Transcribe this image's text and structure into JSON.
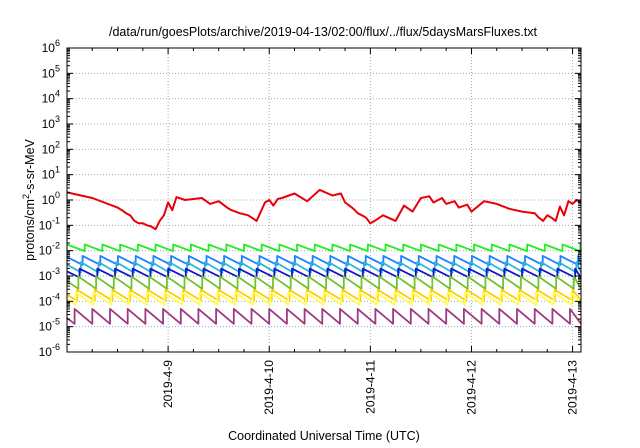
{
  "chart_data": {
    "type": "line",
    "title": "/data/run/goesPlots/archive/2019-04-13/02:00/flux/../flux/5daysMarsFluxes.txt",
    "xlabel": "Coordinated Universal Time (UTC)",
    "ylabel": {
      "pre": "protons/cm",
      "sup": "2",
      "post": "-s-sr-MeV"
    },
    "yscale": "log",
    "ylim": [
      1e-06,
      1000000.0
    ],
    "xlim": [
      "2019-04-08 00:00",
      "2019-04-13 02:00"
    ],
    "grid": true,
    "legend": "none",
    "x_ticks": [
      "2019-4-9",
      "2019-4-10",
      "2019-4-11",
      "2019-4-12",
      "2019-4-13"
    ],
    "y_ticks": [
      {
        "base": "10",
        "exp": "-6"
      },
      {
        "base": "10",
        "exp": "-5"
      },
      {
        "base": "10",
        "exp": "-4"
      },
      {
        "base": "10",
        "exp": "-3"
      },
      {
        "base": "10",
        "exp": "-2"
      },
      {
        "base": "10",
        "exp": "-1"
      },
      {
        "base": "10",
        "exp": "0"
      },
      {
        "base": "10",
        "exp": "1"
      },
      {
        "base": "10",
        "exp": "2"
      },
      {
        "base": "10",
        "exp": "3"
      },
      {
        "base": "10",
        "exp": "4"
      },
      {
        "base": "10",
        "exp": "5"
      },
      {
        "base": "10",
        "exp": "6"
      }
    ],
    "series": [
      {
        "color": "#e8000b",
        "x": [
          "2019-04-08 00:00",
          "2019-04-08 06:00",
          "2019-04-08 12:00",
          "2019-04-08 13:00",
          "2019-04-08 14:00",
          "2019-04-08 15:00",
          "2019-04-08 16:00",
          "2019-04-08 17:00",
          "2019-04-08 18:00",
          "2019-04-08 19:00",
          "2019-04-08 20:00",
          "2019-04-08 21:00",
          "2019-04-08 22:00",
          "2019-04-08 23:00",
          "2019-04-09 00:00",
          "2019-04-09 01:00",
          "2019-04-09 02:00",
          "2019-04-09 04:00",
          "2019-04-09 08:00",
          "2019-04-09 10:00",
          "2019-04-09 12:00",
          "2019-04-09 14:00",
          "2019-04-09 15:00",
          "2019-04-09 17:00",
          "2019-04-09 19:00",
          "2019-04-09 21:00",
          "2019-04-09 23:00",
          "2019-04-10 00:00",
          "2019-04-10 01:00",
          "2019-04-10 02:00",
          "2019-04-10 03:00",
          "2019-04-10 06:00",
          "2019-04-10 09:00",
          "2019-04-10 12:00",
          "2019-04-10 15:00",
          "2019-04-10 17:00",
          "2019-04-10 18:00",
          "2019-04-10 19:00",
          "2019-04-10 20:00",
          "2019-04-10 21:00",
          "2019-04-10 22:00",
          "2019-04-10 23:00",
          "2019-04-11 00:00",
          "2019-04-11 01:00",
          "2019-04-11 03:00",
          "2019-04-11 06:00",
          "2019-04-11 08:00",
          "2019-04-11 10:00",
          "2019-04-11 12:00",
          "2019-04-11 14:00",
          "2019-04-11 15:00",
          "2019-04-11 17:00",
          "2019-04-11 18:00",
          "2019-04-11 20:00",
          "2019-04-11 21:00",
          "2019-04-11 23:00",
          "2019-04-12 00:00",
          "2019-04-12 03:00",
          "2019-04-12 06:00",
          "2019-04-12 09:00",
          "2019-04-12 12:00",
          "2019-04-12 15:00",
          "2019-04-12 16:00",
          "2019-04-12 17:00",
          "2019-04-12 18:00",
          "2019-04-12 19:00",
          "2019-04-12 20:00",
          "2019-04-12 21:00",
          "2019-04-12 22:00",
          "2019-04-12 23:00",
          "2019-04-13 00:00",
          "2019-04-13 01:00",
          "2019-04-13 02:00"
        ],
        "values": [
          2.0,
          1.2,
          0.5,
          0.4,
          0.3,
          0.25,
          0.15,
          0.12,
          0.12,
          0.1,
          0.09,
          0.07,
          0.15,
          0.25,
          0.8,
          0.4,
          1.3,
          1.0,
          1.2,
          0.7,
          0.9,
          0.5,
          0.4,
          0.3,
          0.25,
          0.15,
          0.8,
          1.0,
          0.6,
          1.1,
          1.2,
          1.8,
          0.9,
          2.5,
          1.5,
          1.8,
          0.8,
          0.6,
          0.45,
          0.3,
          0.25,
          0.2,
          0.12,
          0.15,
          0.25,
          0.15,
          0.6,
          0.35,
          1.2,
          1.4,
          0.8,
          1.2,
          0.7,
          0.9,
          0.5,
          0.65,
          0.35,
          0.9,
          0.7,
          0.45,
          0.35,
          0.3,
          0.2,
          0.15,
          0.25,
          0.2,
          0.15,
          0.55,
          0.25,
          0.9,
          0.7,
          1.0,
          0.8
        ]
      },
      {
        "color": "#22ee22",
        "base": 0.0112,
        "swing": 1.16,
        "period_h": 4.2,
        "phase_h": 0.0
      },
      {
        "color": "#1a82ff",
        "base": 0.00355,
        "swing": 1.3,
        "period_h": 4.2,
        "phase_h": 0.5
      },
      {
        "color": "#2ab6d6",
        "base": 0.0019,
        "swing": 1.38,
        "period_h": 4.2,
        "phase_h": 0.9
      },
      {
        "color": "#0d16c8",
        "base": 0.00112,
        "swing": 1.28,
        "period_h": 4.2,
        "phase_h": 1.2
      },
      {
        "color": "#74c232",
        "base": 0.00047,
        "swing": 1.5,
        "period_h": 4.2,
        "phase_h": 1.5
      },
      {
        "color": "#ffcc00",
        "base": 0.00015,
        "swing": 1.4,
        "period_h": 4.2,
        "phase_h": 1.8
      },
      {
        "color": "#ffff55",
        "base": 0.00011,
        "swing": 1.52,
        "period_h": 4.2,
        "phase_h": 2.1
      },
      {
        "color": "#9d3a80",
        "base": 2.2e-05,
        "swing": 1.7,
        "period_h": 4.2,
        "phase_h": 2.4
      }
    ]
  }
}
